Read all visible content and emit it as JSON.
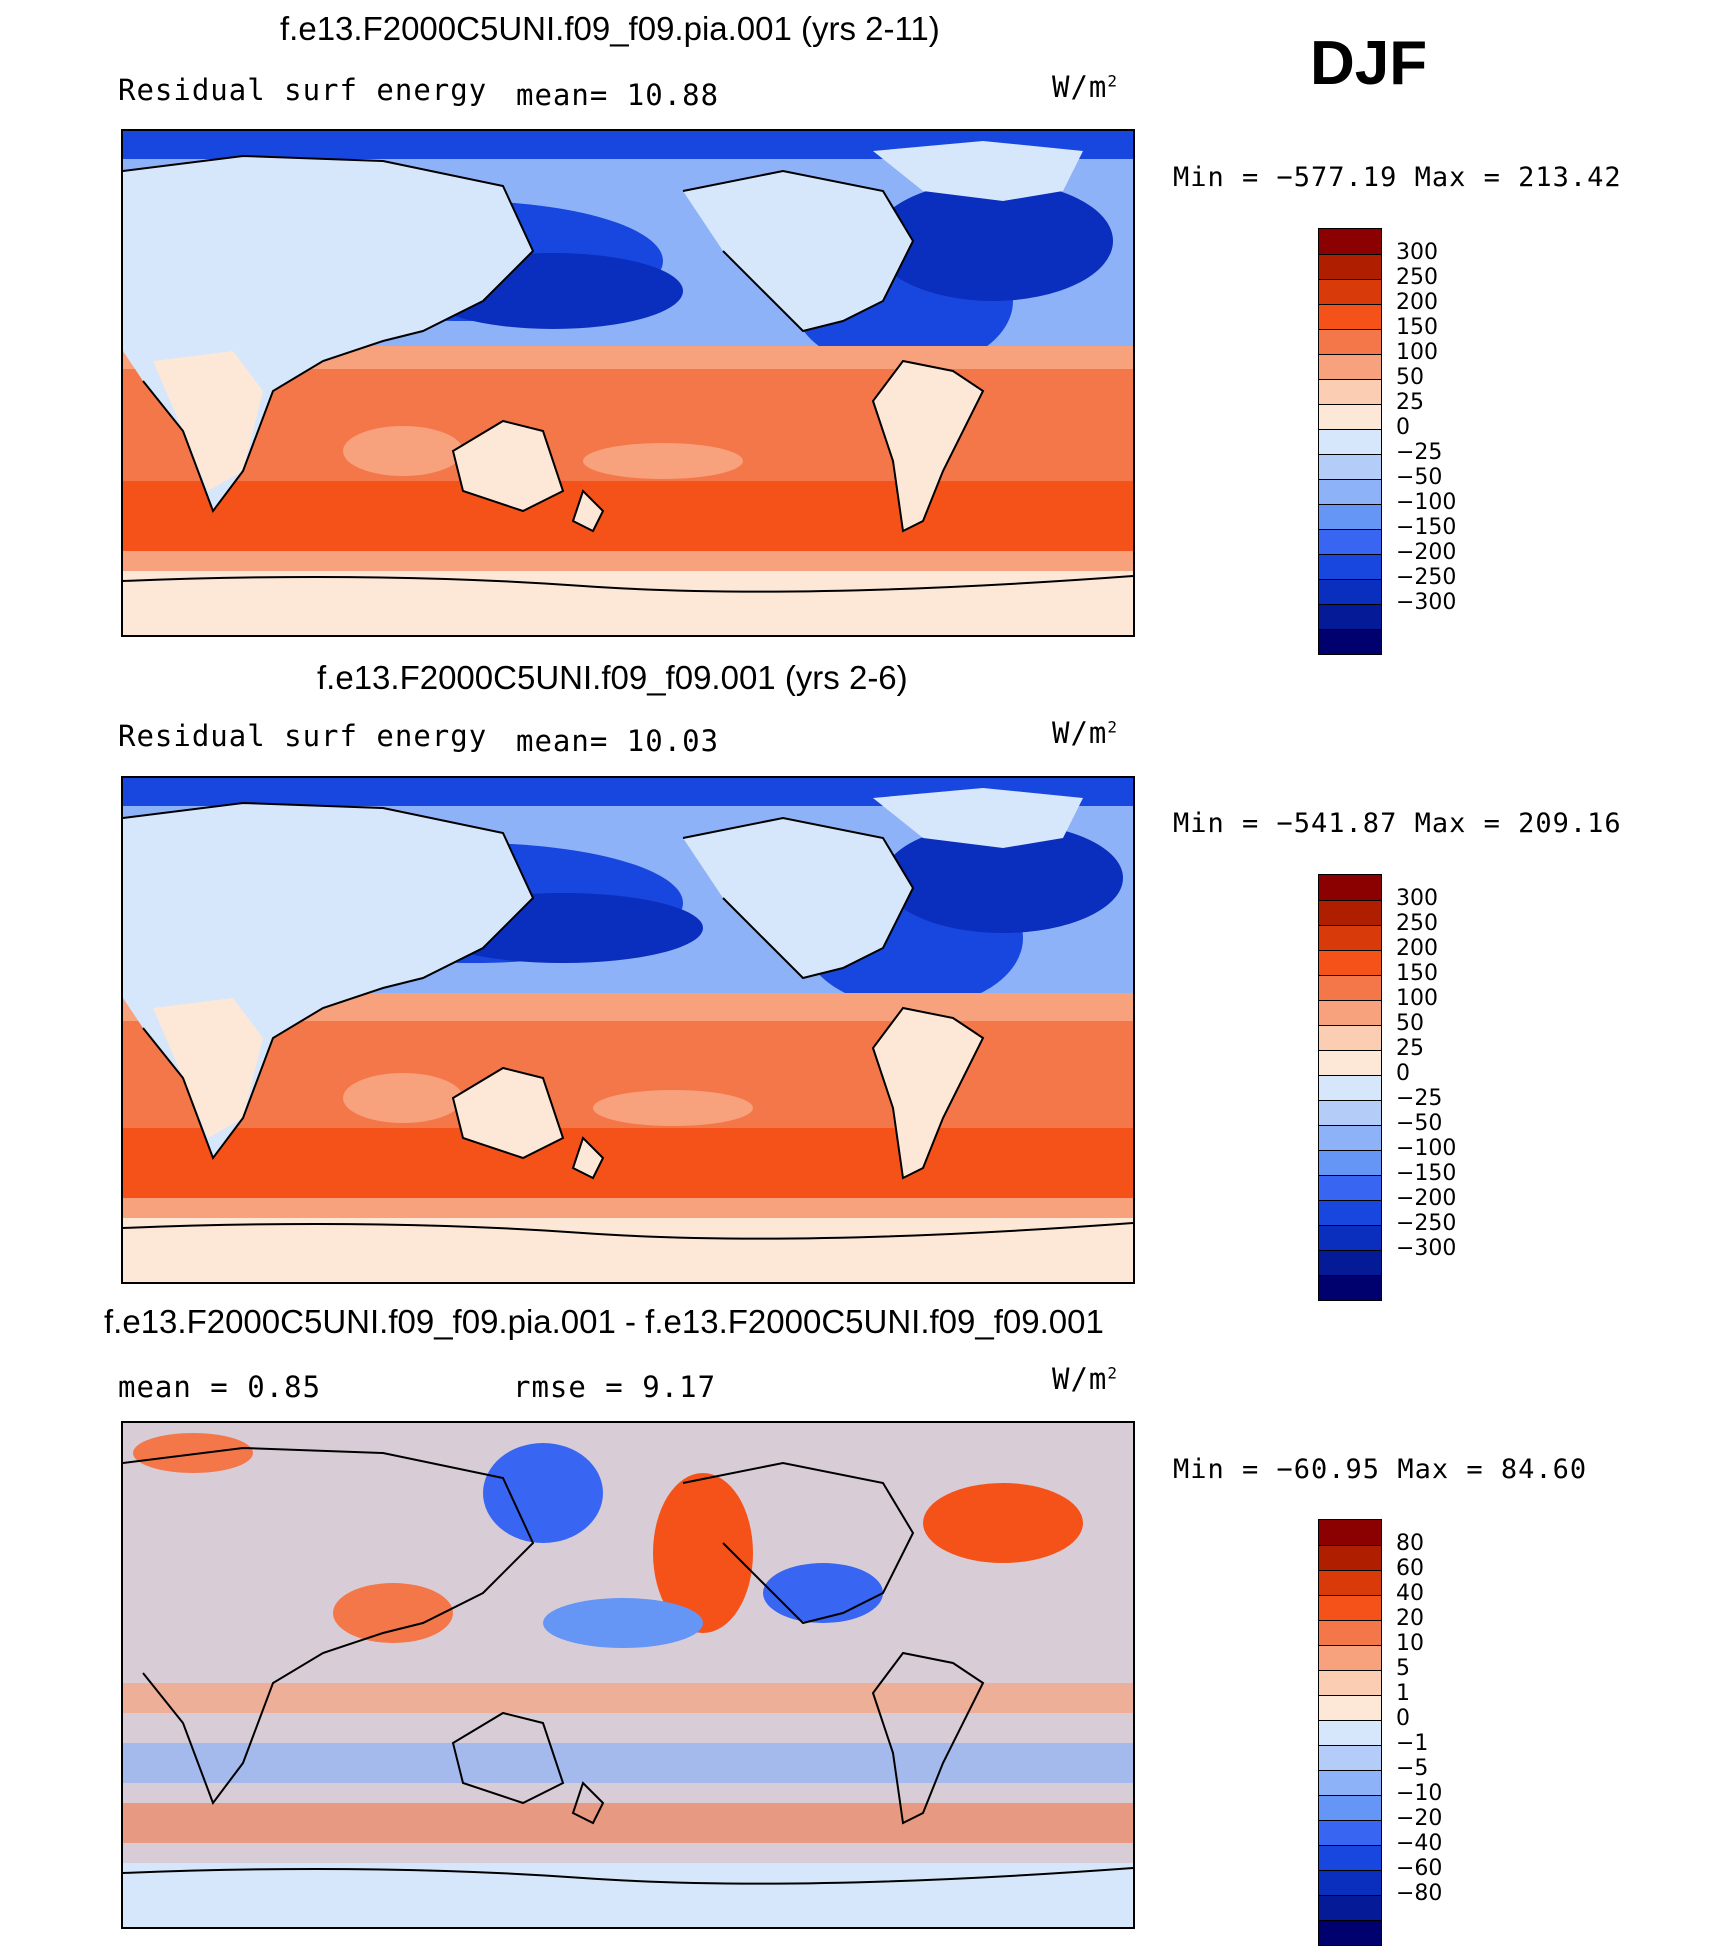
{
  "season": "DJF",
  "panels": [
    {
      "title": "f.e13.F2000C5UNI.f09_f09.pia.001 (yrs 2-11)",
      "left_label": "Residual surf energy",
      "mid_label": "mean=   10.88",
      "units": "W/m",
      "units_sup": "2",
      "minmax": "Min = −577.19 Max = 213.42",
      "colorbar": {
        "colors": [
          "#8b0000",
          "#b01e00",
          "#d83a0a",
          "#f5521a",
          "#f4774a",
          "#f7a27d",
          "#fbcdb3",
          "#fde8d8",
          "#d6e6fb",
          "#b4cdf8",
          "#8eb2f7",
          "#6595f5",
          "#3866f3",
          "#1847e0",
          "#0a2ebd",
          "#041a96",
          "#00006e"
        ],
        "ticks": [
          "300",
          "250",
          "200",
          "150",
          "100",
          "50",
          "25",
          "0",
          "−25",
          "−50",
          "−100",
          "−150",
          "−200",
          "−250",
          "−300"
        ]
      }
    },
    {
      "title": "f.e13.F2000C5UNI.f09_f09.001 (yrs 2-6)",
      "left_label": "Residual surf energy",
      "mid_label": "mean=   10.03",
      "units": "W/m",
      "units_sup": "2",
      "minmax": "Min = −541.87 Max = 209.16",
      "colorbar": {
        "colors": [
          "#8b0000",
          "#b01e00",
          "#d83a0a",
          "#f5521a",
          "#f4774a",
          "#f7a27d",
          "#fbcdb3",
          "#fde8d8",
          "#d6e6fb",
          "#b4cdf8",
          "#8eb2f7",
          "#6595f5",
          "#3866f3",
          "#1847e0",
          "#0a2ebd",
          "#041a96",
          "#00006e"
        ],
        "ticks": [
          "300",
          "250",
          "200",
          "150",
          "100",
          "50",
          "25",
          "0",
          "−25",
          "−50",
          "−100",
          "−150",
          "−200",
          "−250",
          "−300"
        ]
      }
    },
    {
      "title": "f.e13.F2000C5UNI.f09_f09.pia.001 - f.e13.F2000C5UNI.f09_f09.001",
      "left_label": "mean =     0.85",
      "mid_label": "rmse =     9.17",
      "units": "W/m",
      "units_sup": "2",
      "minmax": "Min = −60.95 Max =   84.60",
      "colorbar": {
        "colors": [
          "#8b0000",
          "#b01e00",
          "#d83a0a",
          "#f5521a",
          "#f4774a",
          "#f7a27d",
          "#fbcdb3",
          "#fde8d8",
          "#d6e6fb",
          "#b4cdf8",
          "#8eb2f7",
          "#6595f5",
          "#3866f3",
          "#1847e0",
          "#0a2ebd",
          "#041a96",
          "#00006e"
        ],
        "ticks": [
          "80",
          "60",
          "40",
          "20",
          "10",
          "5",
          "1",
          "0",
          "−1",
          "−5",
          "−10",
          "−20",
          "−40",
          "−60",
          "−80"
        ]
      }
    }
  ]
}
